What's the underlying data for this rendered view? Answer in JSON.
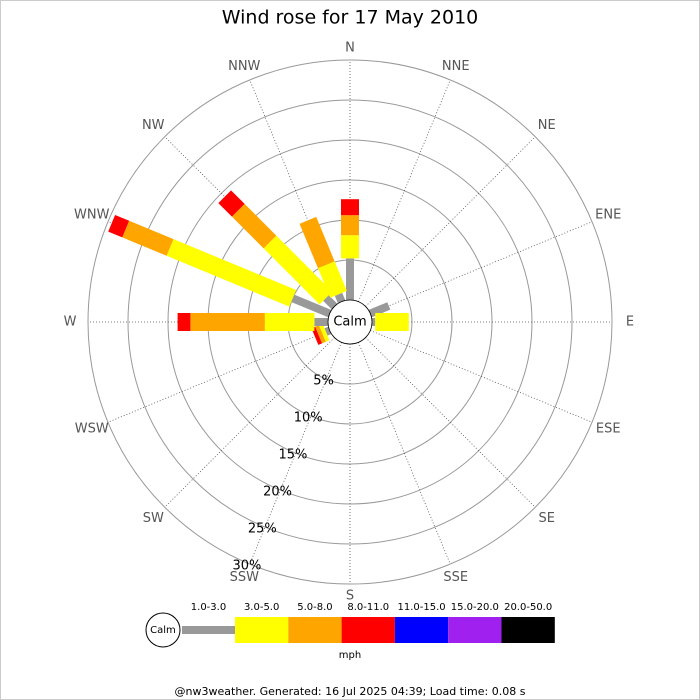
{
  "chart_data": {
    "type": "windrose",
    "title": "Wind rose for 17 May 2010",
    "directions": [
      "N",
      "NNE",
      "NE",
      "ENE",
      "E",
      "ESE",
      "SE",
      "SSE",
      "S",
      "SSW",
      "SW",
      "WSW",
      "W",
      "WNW",
      "NW",
      "NNW"
    ],
    "calm_label": "Calm",
    "unit": "mph",
    "rlim": [
      0,
      30
    ],
    "rticks": [
      {
        "value": 5,
        "label": "5%"
      },
      {
        "value": 10,
        "label": "10%"
      },
      {
        "value": 15,
        "label": "15%"
      },
      {
        "value": 20,
        "label": "20%"
      },
      {
        "value": 25,
        "label": "25%"
      },
      {
        "value": 30,
        "label": "30%"
      }
    ],
    "series": [
      {
        "name": "1.0-3.0",
        "color": "#999999",
        "values": [
          5.2,
          0,
          0,
          2.5,
          0.4,
          0,
          0,
          0,
          0,
          0,
          0,
          0.5,
          1.7,
          5,
          1.5,
          1
        ]
      },
      {
        "name": "3.0-5.0",
        "color": "#ffff00",
        "values": [
          2.9,
          0,
          0,
          0,
          4.2,
          0,
          0,
          0,
          0,
          0,
          0,
          0.5,
          6.2,
          16.6,
          9.9,
          4
        ]
      },
      {
        "name": "5.0-8.0",
        "color": "#ffa500",
        "values": [
          2.5,
          0,
          0,
          0,
          0,
          0,
          0,
          0,
          0,
          0,
          0,
          0.5,
          9.3,
          6,
          5.6,
          6
        ]
      },
      {
        "name": "8.0-11.0",
        "color": "#ff0000",
        "values": [
          2,
          0,
          0,
          0,
          0,
          0,
          0,
          0,
          0,
          0,
          0,
          0.5,
          1.6,
          1.9,
          2.4,
          0
        ]
      },
      {
        "name": "11.0-15.0",
        "color": "#0000ff",
        "values": [
          0,
          0,
          0,
          0,
          0,
          0,
          0,
          0,
          0,
          0,
          0,
          0,
          0,
          0,
          0,
          0
        ]
      },
      {
        "name": "15.0-20.0",
        "color": "#a020f0",
        "values": [
          0,
          0,
          0,
          0,
          0,
          0,
          0,
          0,
          0,
          0,
          0,
          0,
          0,
          0,
          0,
          0
        ]
      },
      {
        "name": "20.0-50.0",
        "color": "#000000",
        "values": [
          0,
          0,
          0,
          0,
          0,
          0,
          0,
          0,
          0,
          0,
          0,
          0,
          0,
          0,
          0,
          0
        ]
      }
    ],
    "footer": "@nw3weather. Generated: 16 Jul 2025 04:39; Load time: 0.08 s"
  }
}
